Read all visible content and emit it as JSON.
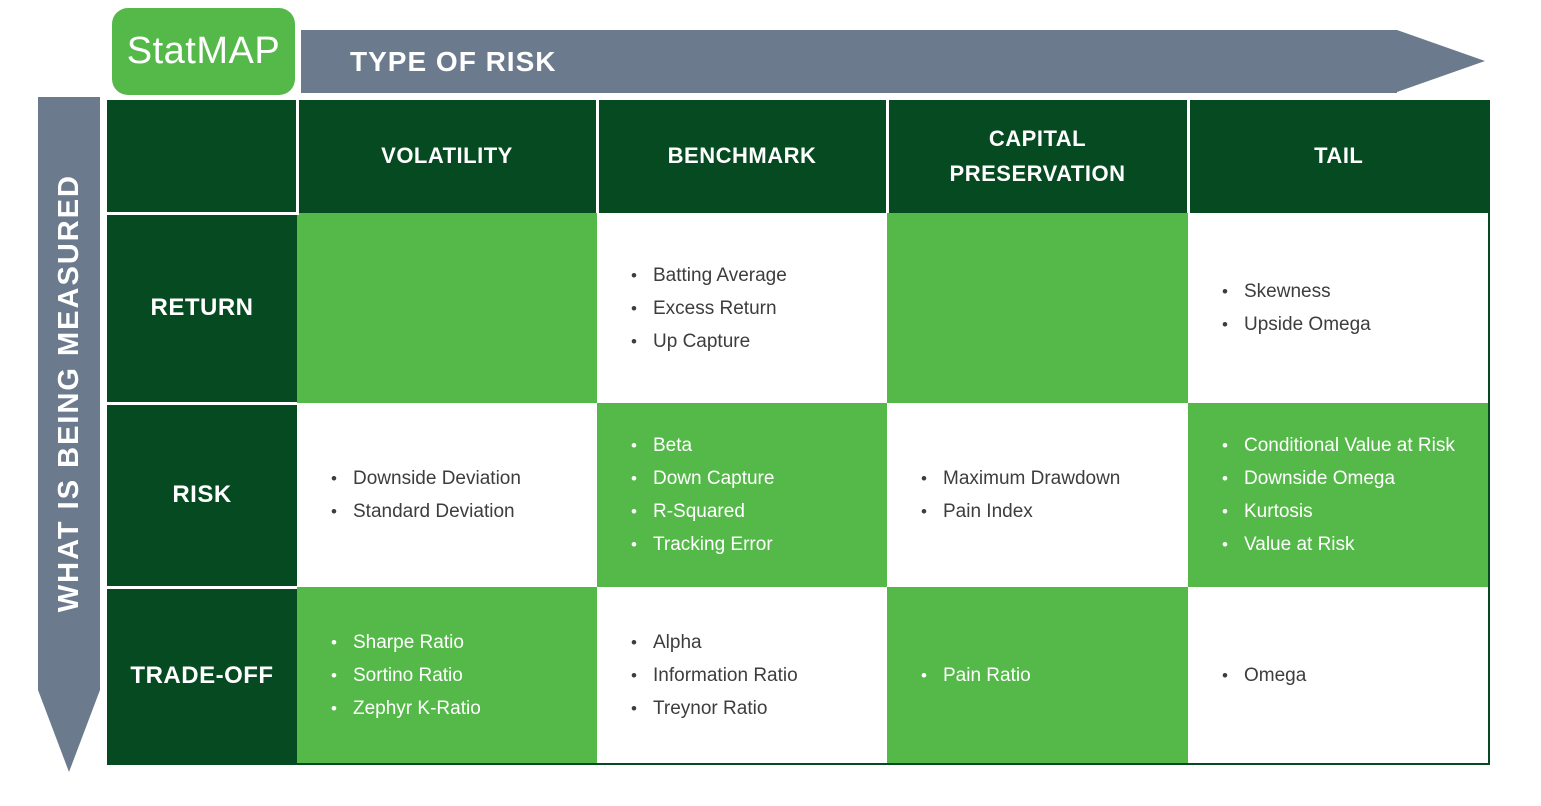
{
  "badge": {
    "label": "StatMAP"
  },
  "axes": {
    "top": {
      "label": "TYPE OF RISK"
    },
    "left": {
      "label": "WHAT IS BEING MEASURED"
    }
  },
  "bullet_glyph": "•",
  "colors": {
    "dark_green": "#054A21",
    "medium_green": "#55B94A",
    "slate_gray": "#6B7A8C",
    "body_text": "#3D3D3D",
    "white": "#FFFFFF"
  },
  "table": {
    "columns": [
      "VOLATILITY",
      "BENCHMARK",
      "CAPITAL PRESERVATION",
      "TAIL"
    ],
    "rows": [
      {
        "label": "RETURN",
        "cells": [
          {
            "variant": "green",
            "items": []
          },
          {
            "variant": "white",
            "items": [
              "Batting Average",
              "Excess Return",
              "Up Capture"
            ]
          },
          {
            "variant": "green",
            "items": []
          },
          {
            "variant": "white",
            "items": [
              "Skewness",
              "Upside Omega"
            ]
          }
        ]
      },
      {
        "label": "RISK",
        "cells": [
          {
            "variant": "white",
            "items": [
              "Downside Deviation",
              "Standard Deviation"
            ]
          },
          {
            "variant": "green",
            "items": [
              "Beta",
              "Down Capture",
              "R-Squared",
              "Tracking Error"
            ]
          },
          {
            "variant": "white",
            "items": [
              "Maximum Drawdown",
              "Pain Index"
            ]
          },
          {
            "variant": "green",
            "items": [
              "Conditional Value at Risk",
              "Downside Omega",
              "Kurtosis",
              "Value at Risk"
            ]
          }
        ]
      },
      {
        "label": "TRADE-OFF",
        "cells": [
          {
            "variant": "green",
            "items": [
              "Sharpe Ratio",
              "Sortino Ratio",
              "Zephyr K-Ratio"
            ]
          },
          {
            "variant": "white",
            "items": [
              "Alpha",
              "Information Ratio",
              "Treynor Ratio"
            ]
          },
          {
            "variant": "green",
            "items": [
              "Pain Ratio"
            ]
          },
          {
            "variant": "white",
            "items": [
              "Omega"
            ]
          }
        ]
      }
    ]
  }
}
